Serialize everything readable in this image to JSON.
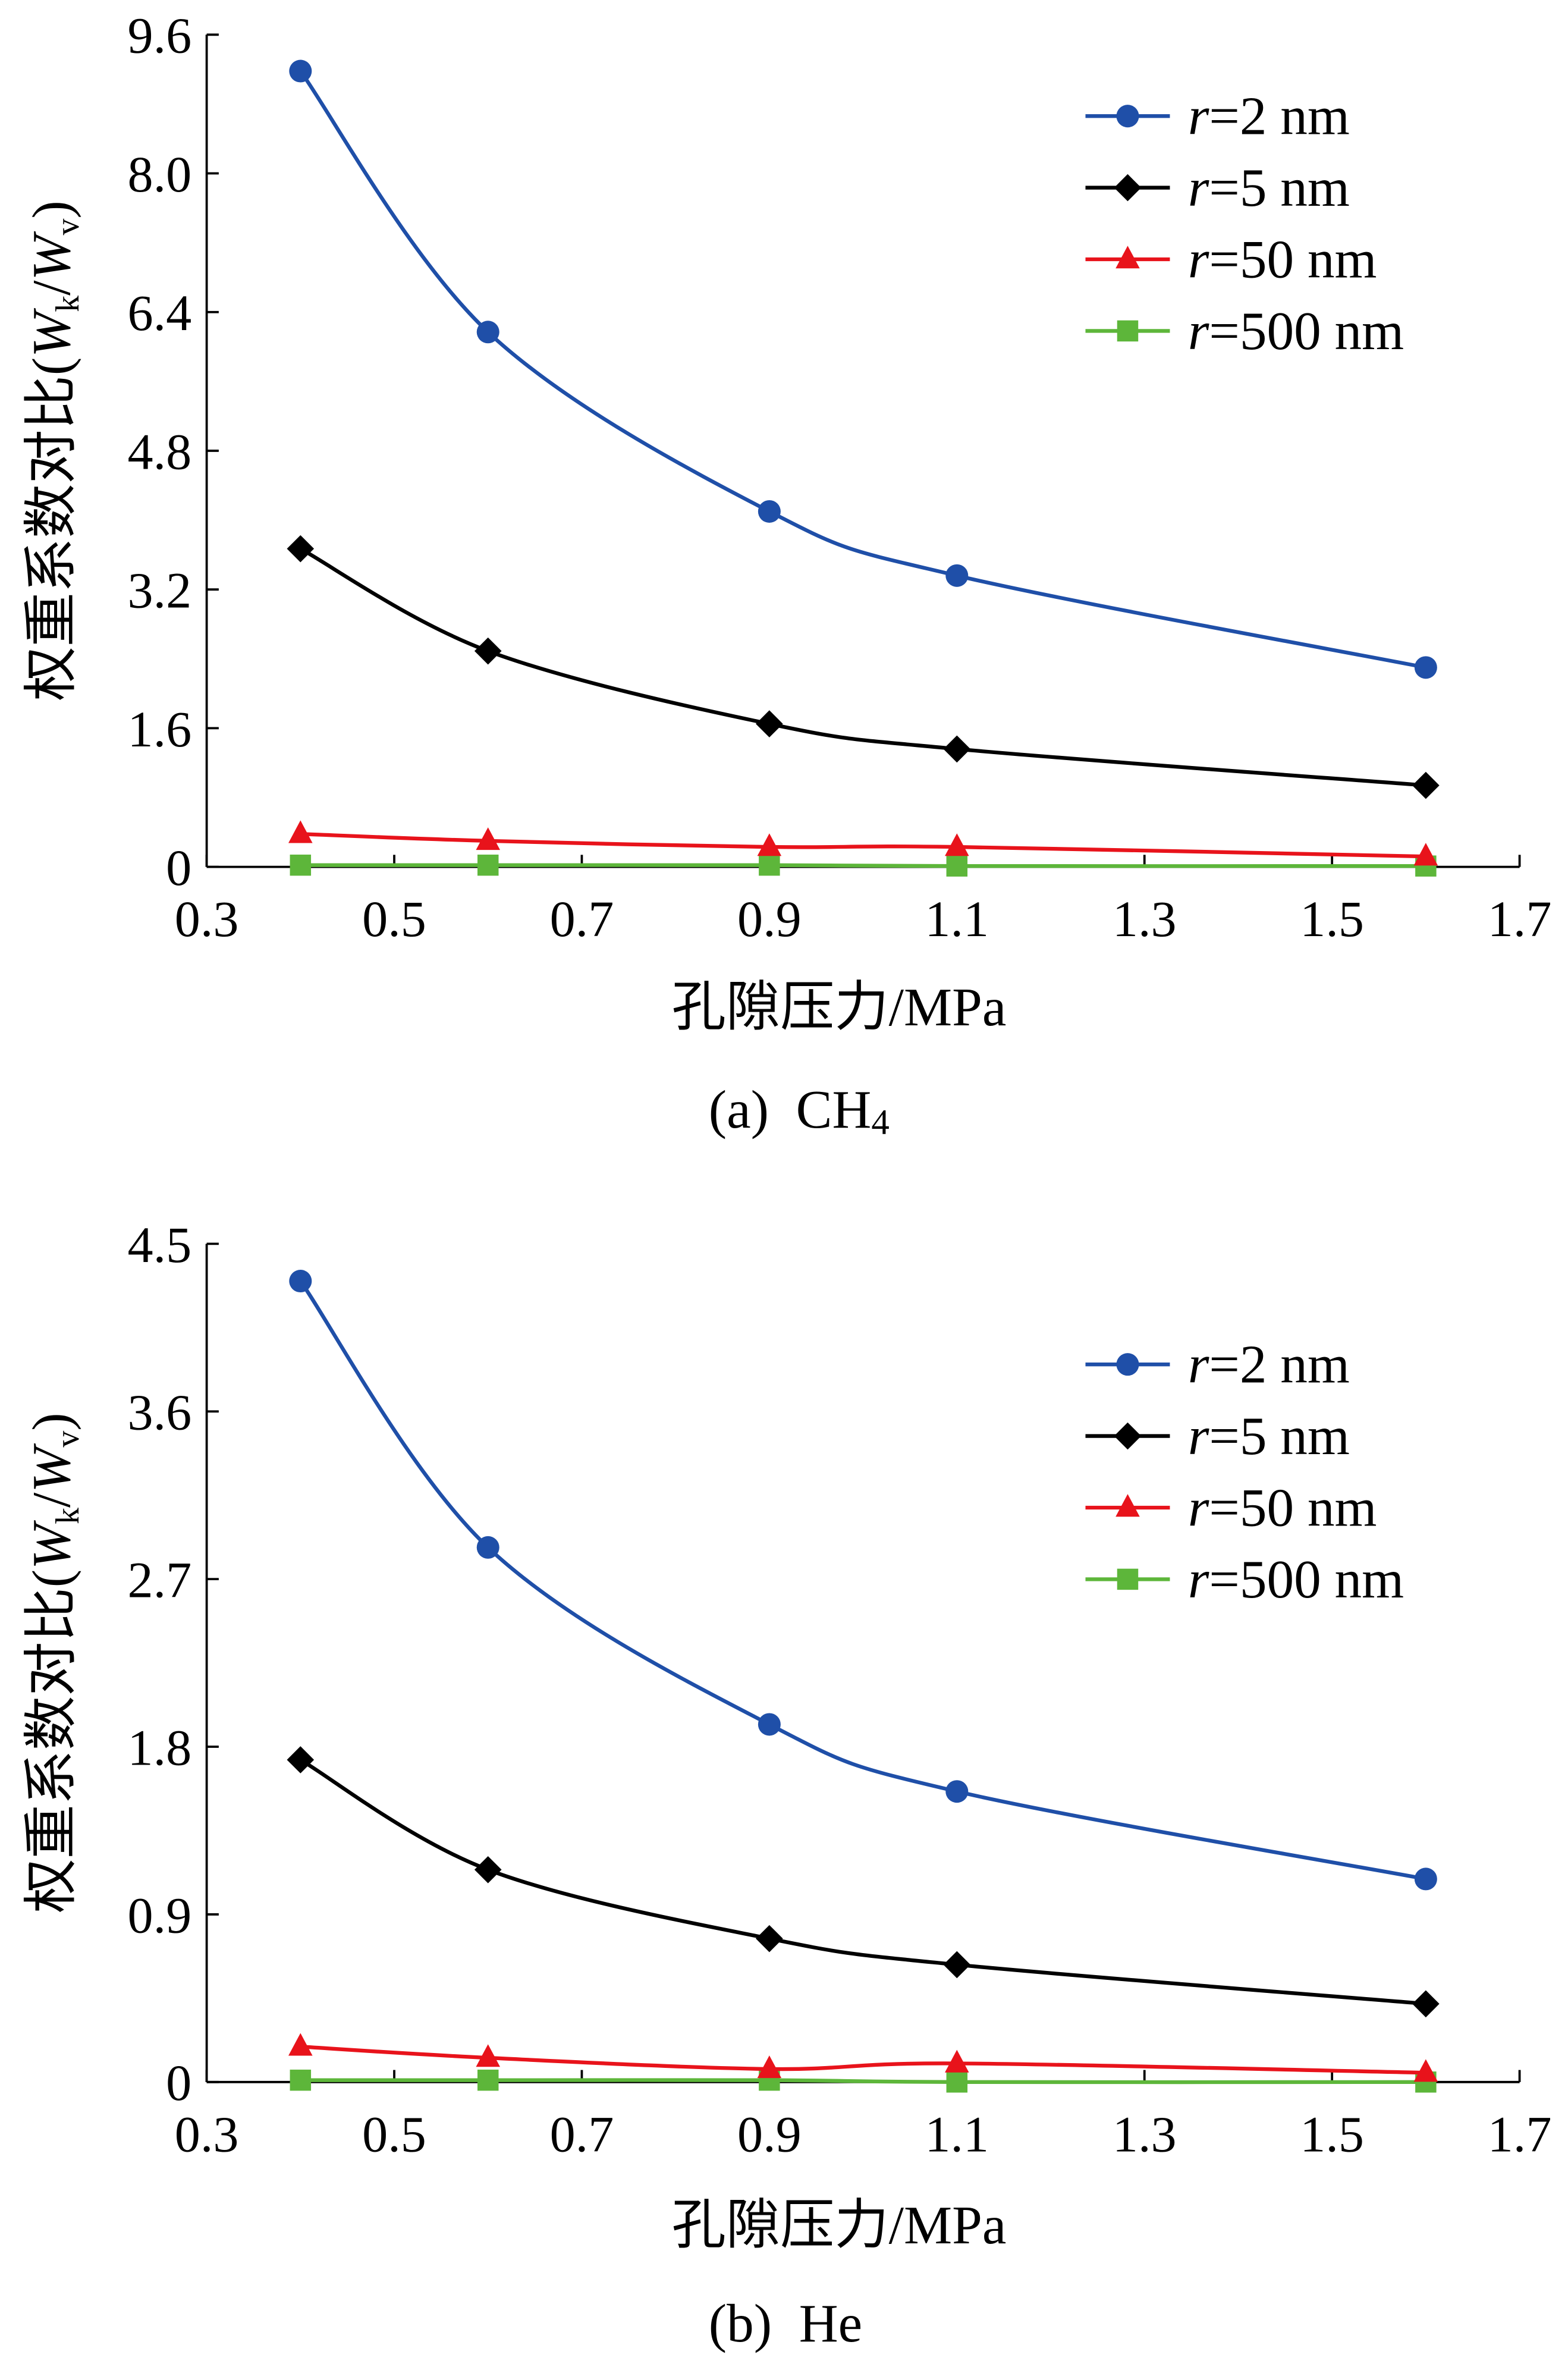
{
  "chart_data": [
    {
      "type": "line",
      "title": "",
      "caption": {
        "label": "(a)",
        "gas": "CH",
        "gas_sub": "4"
      },
      "xlabel": "孔隙压力/MPa",
      "ylabel": {
        "prefix": "权重系数对比(",
        "w1": "W",
        "s1": "k",
        "slash": "/",
        "w2": "W",
        "s2": "v",
        "suffix": ")"
      },
      "xlim": [
        0.3,
        1.7
      ],
      "xticks": [
        "0.3",
        "0.5",
        "0.7",
        "0.9",
        "1.1",
        "1.3",
        "1.5",
        "1.7"
      ],
      "ylim": [
        0,
        9.6
      ],
      "yticks": [
        "0",
        "1.6",
        "3.2",
        "4.8",
        "6.4",
        "8.0",
        "9.6"
      ],
      "legend_position": "top-right",
      "x": [
        0.4,
        0.6,
        0.9,
        1.1,
        1.6
      ],
      "series": [
        {
          "name": "r=2 nm",
          "r": "r",
          "rest": "=2 nm",
          "color": "#1f4fa8",
          "marker": "circle",
          "values": [
            9.18,
            6.17,
            4.1,
            3.36,
            2.3
          ]
        },
        {
          "name": "r=5 nm",
          "r": "r",
          "rest": "=5 nm",
          "color": "#000000",
          "marker": "diamond",
          "values": [
            3.67,
            2.49,
            1.65,
            1.36,
            0.94
          ]
        },
        {
          "name": "r=50 nm",
          "r": "r",
          "rest": "=50 nm",
          "color": "#e8131b",
          "marker": "triangle",
          "values": [
            0.38,
            0.3,
            0.23,
            0.23,
            0.12
          ]
        },
        {
          "name": "r=500 nm",
          "r": "r",
          "rest": "=500 nm",
          "color": "#5db63a",
          "marker": "square",
          "values": [
            0.02,
            0.02,
            0.02,
            0.01,
            0.01
          ]
        }
      ]
    },
    {
      "type": "line",
      "title": "",
      "caption": {
        "label": "(b)",
        "gas": "He",
        "gas_sub": ""
      },
      "xlabel": "孔隙压力/MPa",
      "ylabel": {
        "prefix": "权重系数对比(",
        "w1": "W",
        "s1": "k",
        "slash": "/",
        "w2": "W",
        "s2": "v",
        "suffix": ")"
      },
      "xlim": [
        0.3,
        1.7
      ],
      "xticks": [
        "0.3",
        "0.5",
        "0.7",
        "0.9",
        "1.1",
        "1.3",
        "1.5",
        "1.7"
      ],
      "ylim": [
        0,
        4.5
      ],
      "yticks": [
        "0",
        "0.9",
        "1.8",
        "2.7",
        "3.6",
        "4.5"
      ],
      "legend_position": "top-right",
      "x": [
        0.4,
        0.6,
        0.9,
        1.1,
        1.6
      ],
      "series": [
        {
          "name": "r=2 nm",
          "r": "r",
          "rest": "=2 nm",
          "color": "#1f4fa8",
          "marker": "circle",
          "values": [
            4.3,
            2.87,
            1.92,
            1.56,
            1.09
          ]
        },
        {
          "name": "r=5 nm",
          "r": "r",
          "rest": "=5 nm",
          "color": "#000000",
          "marker": "diamond",
          "values": [
            1.73,
            1.14,
            0.77,
            0.63,
            0.42
          ]
        },
        {
          "name": "r=50 nm",
          "r": "r",
          "rest": "=50 nm",
          "color": "#e8131b",
          "marker": "triangle",
          "values": [
            0.19,
            0.13,
            0.07,
            0.1,
            0.05
          ]
        },
        {
          "name": "r=500 nm",
          "r": "r",
          "rest": "=500 nm",
          "color": "#5db63a",
          "marker": "square",
          "values": [
            0.01,
            0.01,
            0.01,
            0.0,
            0.0
          ]
        }
      ]
    }
  ]
}
